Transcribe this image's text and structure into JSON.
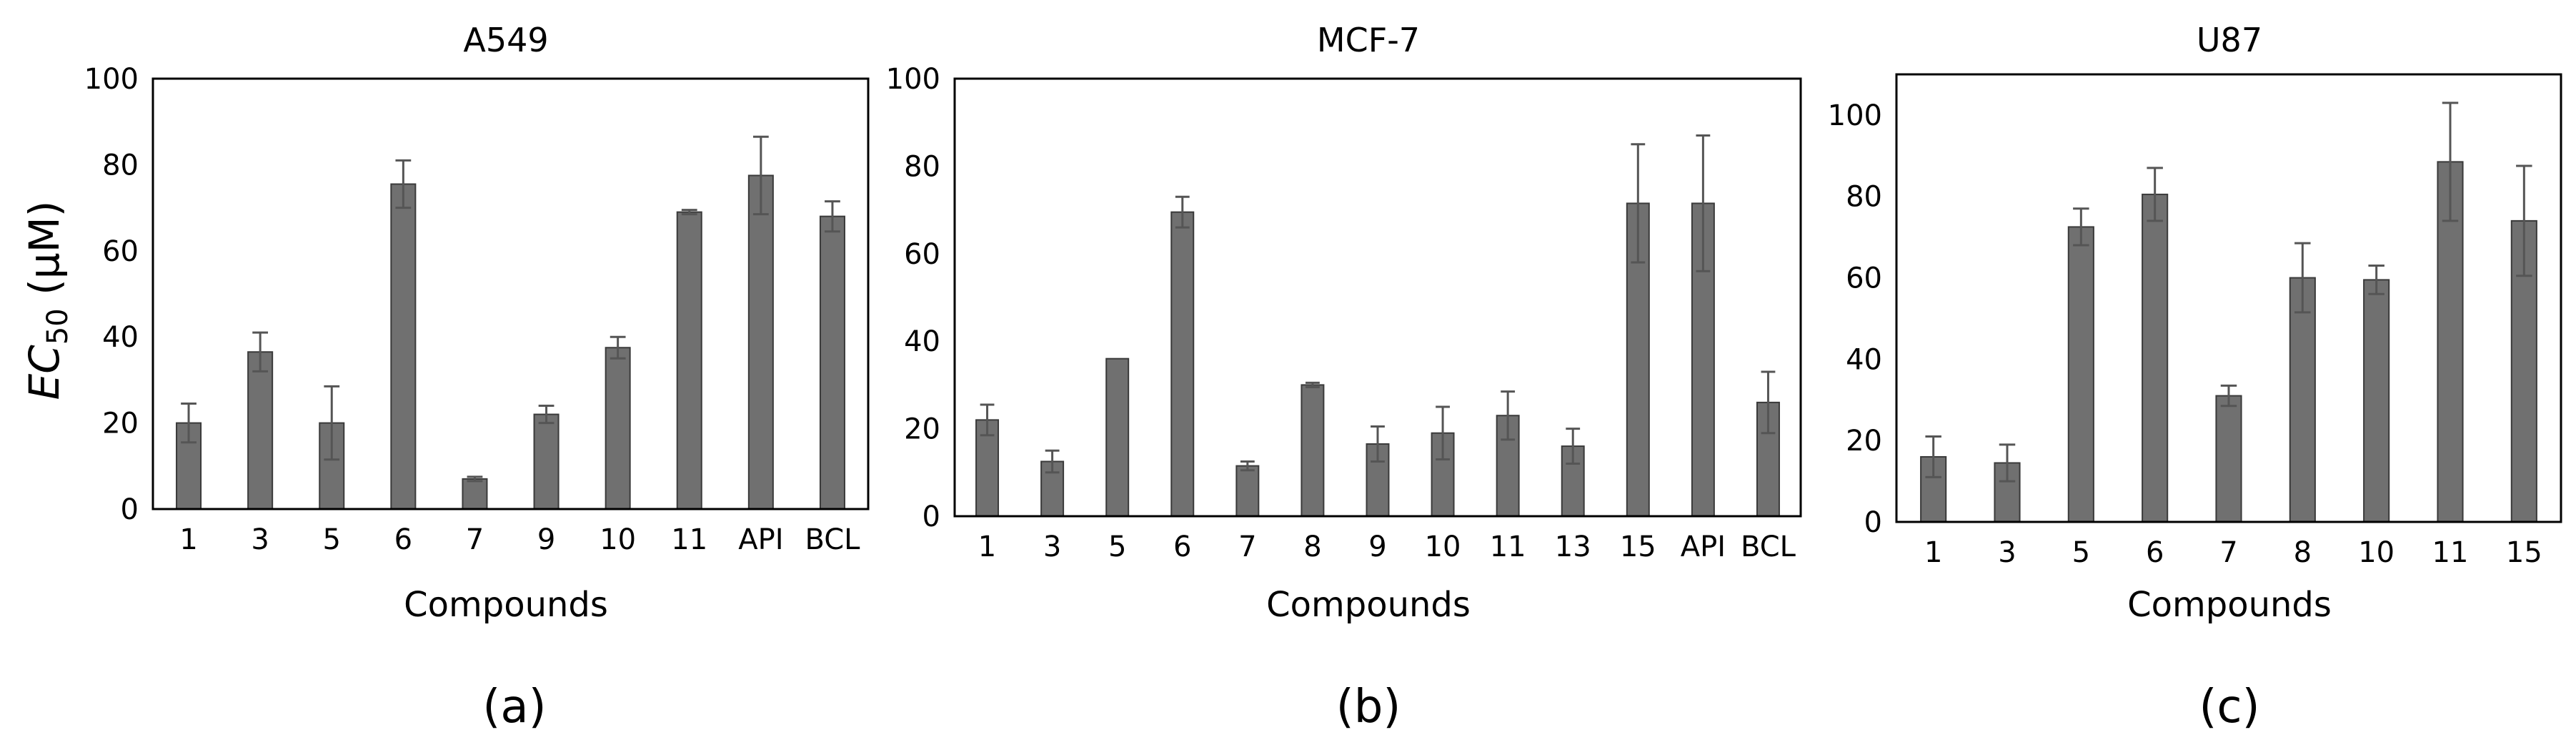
{
  "figure": {
    "ylabel": {
      "symbol": "EC",
      "subscript": "50",
      "unit": " (μM)"
    }
  },
  "chart_data": [
    {
      "type": "bar",
      "title": "A549",
      "panel_label": "(a)",
      "xlabel": "Compounds",
      "ylabel": "EC50 (μM)",
      "ylim": [
        0,
        100
      ],
      "yticks": [
        0,
        20,
        40,
        60,
        80,
        100
      ],
      "categories": [
        "1",
        "3",
        "5",
        "6",
        "7",
        "9",
        "10",
        "11",
        "API",
        "BCL"
      ],
      "values": [
        20,
        36.5,
        20,
        75.5,
        7,
        22,
        37.5,
        69,
        77.5,
        68
      ],
      "errors": [
        4.5,
        4.5,
        8.5,
        5.5,
        0.5,
        2,
        2.5,
        0.5,
        9,
        3.5
      ],
      "colors": {
        "bar": "#707070",
        "error": "#555555"
      }
    },
    {
      "type": "bar",
      "title": "MCF-7",
      "panel_label": "(b)",
      "xlabel": "Compounds",
      "ylabel": "",
      "ylim": [
        0,
        100
      ],
      "yticks": [
        0,
        20,
        40,
        60,
        80,
        100
      ],
      "categories": [
        "1",
        "3",
        "5",
        "6",
        "7",
        "8",
        "9",
        "10",
        "11",
        "13",
        "15",
        "API",
        "BCL"
      ],
      "values": [
        22,
        12.5,
        36,
        69.5,
        11.5,
        30,
        16.5,
        19,
        23,
        16,
        71.5,
        71.5,
        26
      ],
      "errors": [
        3.5,
        2.5,
        0,
        3.5,
        1,
        0.5,
        4,
        6,
        5.5,
        4,
        13.5,
        15.5,
        7
      ],
      "colors": {
        "bar": "#707070",
        "error": "#555555"
      }
    },
    {
      "type": "bar",
      "title": "U87",
      "panel_label": "(c)",
      "xlabel": "Compounds",
      "ylabel": "",
      "ylim": [
        0,
        110
      ],
      "yticks": [
        0,
        20,
        40,
        60,
        80,
        100
      ],
      "categories": [
        "1",
        "3",
        "5",
        "6",
        "7",
        "8",
        "10",
        "11",
        "15"
      ],
      "values": [
        16,
        14.5,
        72.5,
        80.5,
        31,
        60,
        59.5,
        88.5,
        74
      ],
      "errors": [
        5,
        4.5,
        4.5,
        6.5,
        2.5,
        8.5,
        3.5,
        14.5,
        13.5
      ],
      "colors": {
        "bar": "#707070",
        "error": "#555555"
      }
    }
  ]
}
